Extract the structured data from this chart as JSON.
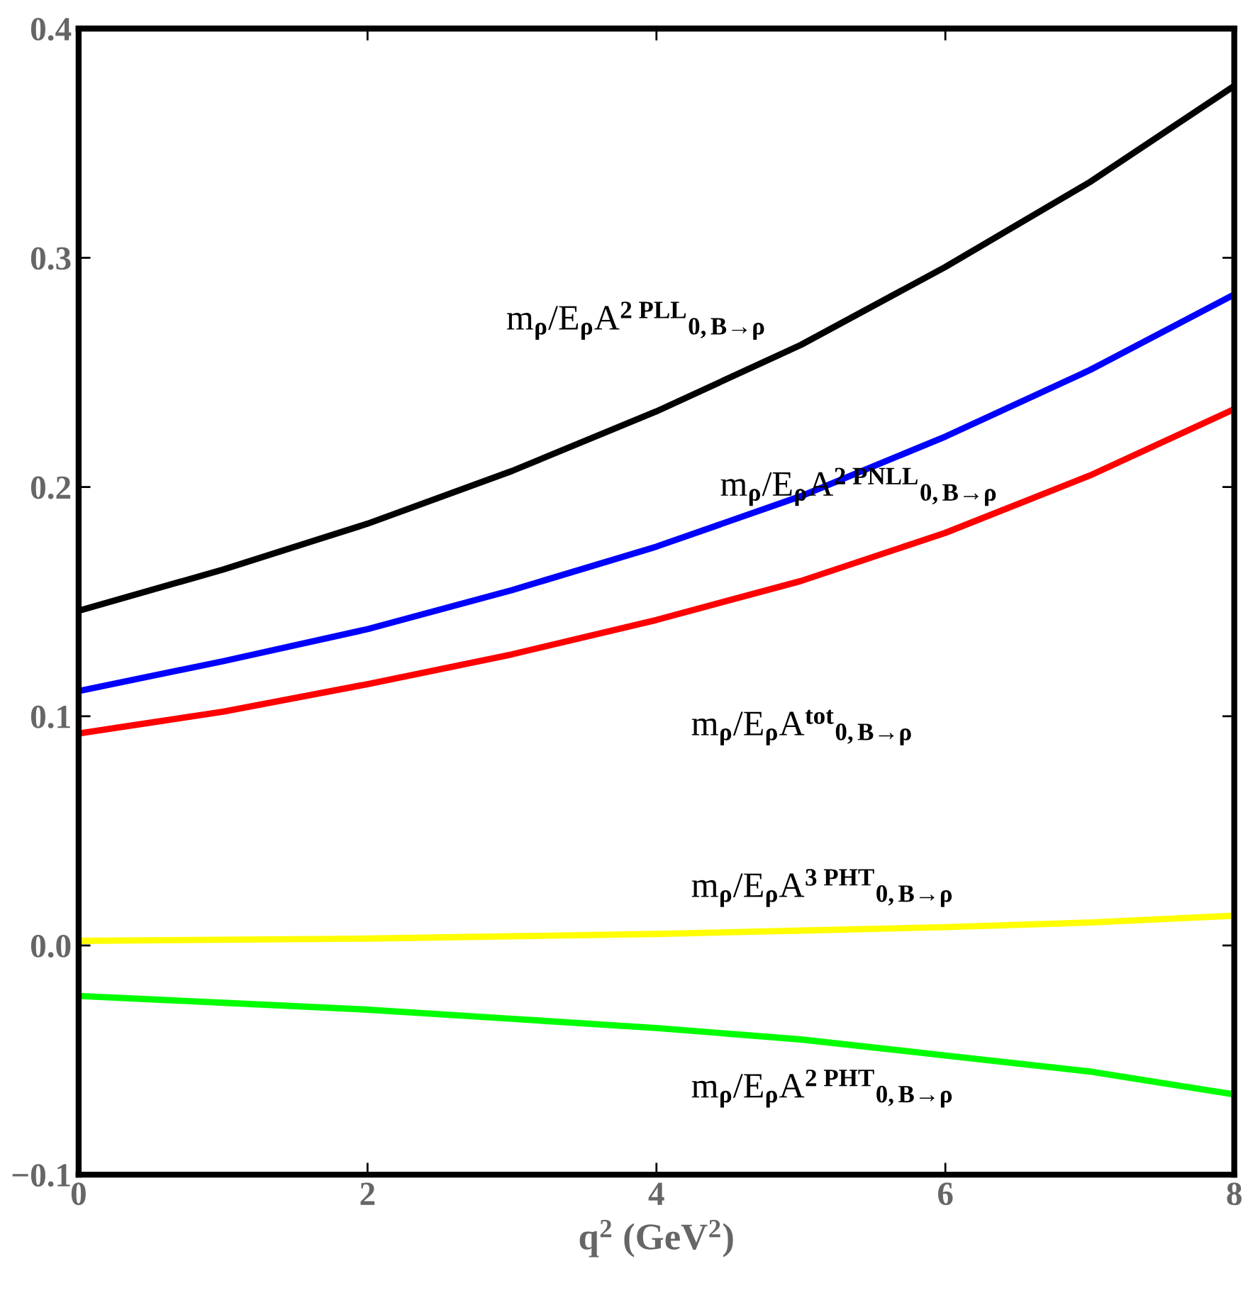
{
  "chart_data": {
    "type": "line",
    "xlabel": "q$^{2}$ (GeV$^{2}$)",
    "x": [
      0,
      1,
      2,
      3,
      4,
      5,
      6,
      7,
      8
    ],
    "xlim": [
      0,
      8
    ],
    "xticks": [
      0,
      2,
      4,
      6,
      8
    ],
    "ylim": [
      -0.1,
      0.4
    ],
    "yticks": [
      {
        "value": -0.1,
        "label": "−0.1"
      },
      {
        "value": 0,
        "label": "0.0"
      },
      {
        "value": 0.1,
        "label": "0.1"
      },
      {
        "value": 0.2,
        "label": "0.2"
      },
      {
        "value": 0.3,
        "label": "0.3"
      },
      {
        "value": 0.4,
        "label": "0.4"
      }
    ],
    "grid": false,
    "legend": false,
    "marker": "none",
    "line_style": "solid",
    "series": [
      {
        "color": "#000000",
        "values": [
          0.146,
          0.164,
          0.184,
          0.207,
          0.233,
          0.262,
          0.296,
          0.333,
          0.375
        ]
      },
      {
        "color": "#0000ff",
        "values": [
          0.111,
          0.124,
          0.138,
          0.155,
          0.174,
          0.196,
          0.222,
          0.251,
          0.284
        ]
      },
      {
        "color": "#ff0000",
        "values": [
          0.0925,
          0.102,
          0.114,
          0.127,
          0.142,
          0.159,
          0.18,
          0.205,
          0.234
        ]
      },
      {
        "color": "#ffff00",
        "values": [
          0.002,
          0.0025,
          0.003,
          0.004,
          0.005,
          0.0065,
          0.008,
          0.01,
          0.013
        ]
      },
      {
        "color": "#00ff00",
        "values": [
          -0.022,
          -0.025,
          -0.028,
          -0.032,
          -0.036,
          -0.041,
          -0.048,
          -0.055,
          -0.065
        ]
      }
    ],
    "annotations": [
      "m$_{ρ}$/E$_{ρ}$A$^{2 PLL}$$_{0,B→ρ}$",
      "m$_{ρ}$/E$_{ρ}$A$^{2 PNLL}$$_{0,B→ρ}$",
      "m$_{ρ}$/E$_{ρ}$A$^{tot}$$_{0,B→ρ}$",
      "m$_{ρ}$/E$_{ρ}$A$^{3 PHT}$$_{0,B→ρ}$",
      "m$_{ρ}$/E$_{ρ}$A$^{2 PHT}$$_{0,B→ρ}$"
    ]
  }
}
